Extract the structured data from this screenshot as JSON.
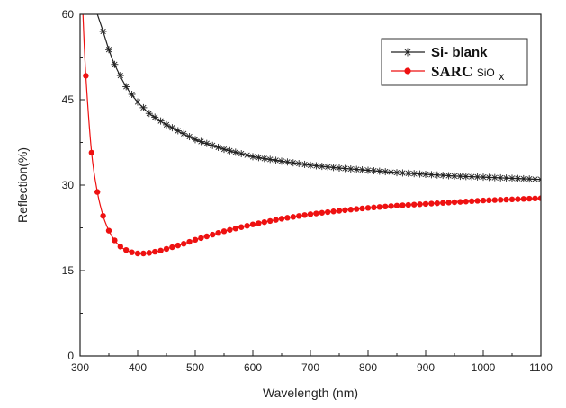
{
  "chart_data": {
    "type": "line",
    "xlabel": "Wavelength (nm)",
    "ylabel": "Reflection(%)",
    "xlim": [
      300,
      1100
    ],
    "ylim": [
      0,
      60
    ],
    "xticks": [
      300,
      400,
      500,
      600,
      700,
      800,
      900,
      1000,
      1100
    ],
    "yticks": [
      0,
      15,
      30,
      45,
      60
    ],
    "grid": false,
    "legend_position": "top-right",
    "series": [
      {
        "name": "Si- blank",
        "color": "#222222",
        "marker": "asterisk",
        "x": [
          330,
          340,
          350,
          360,
          380,
          400,
          420,
          450,
          500,
          550,
          600,
          650,
          700,
          750,
          800,
          850,
          900,
          950,
          1000,
          1050,
          1100
        ],
        "values": [
          60,
          57.0,
          53.8,
          51.2,
          47.3,
          44.6,
          42.6,
          40.6,
          38.0,
          36.3,
          35.0,
          34.2,
          33.5,
          33.0,
          32.6,
          32.2,
          31.9,
          31.6,
          31.4,
          31.2,
          31.0
        ]
      },
      {
        "name_main": "SARC",
        "name_sub": "SiO",
        "name_subscript": "x",
        "color": "#ee1111",
        "marker": "circle",
        "x": [
          305,
          310,
          320,
          330,
          340,
          350,
          360,
          370,
          380,
          390,
          400,
          410,
          420,
          440,
          460,
          480,
          500,
          550,
          600,
          650,
          700,
          750,
          800,
          850,
          900,
          950,
          1000,
          1050,
          1100
        ],
        "values": [
          60,
          49.2,
          35.7,
          28.8,
          24.6,
          22.0,
          20.3,
          19.2,
          18.6,
          18.2,
          18.0,
          18.0,
          18.1,
          18.5,
          19.1,
          19.7,
          20.4,
          21.9,
          23.1,
          24.1,
          24.9,
          25.5,
          26.0,
          26.4,
          26.7,
          27.0,
          27.3,
          27.5,
          27.7
        ]
      }
    ]
  }
}
